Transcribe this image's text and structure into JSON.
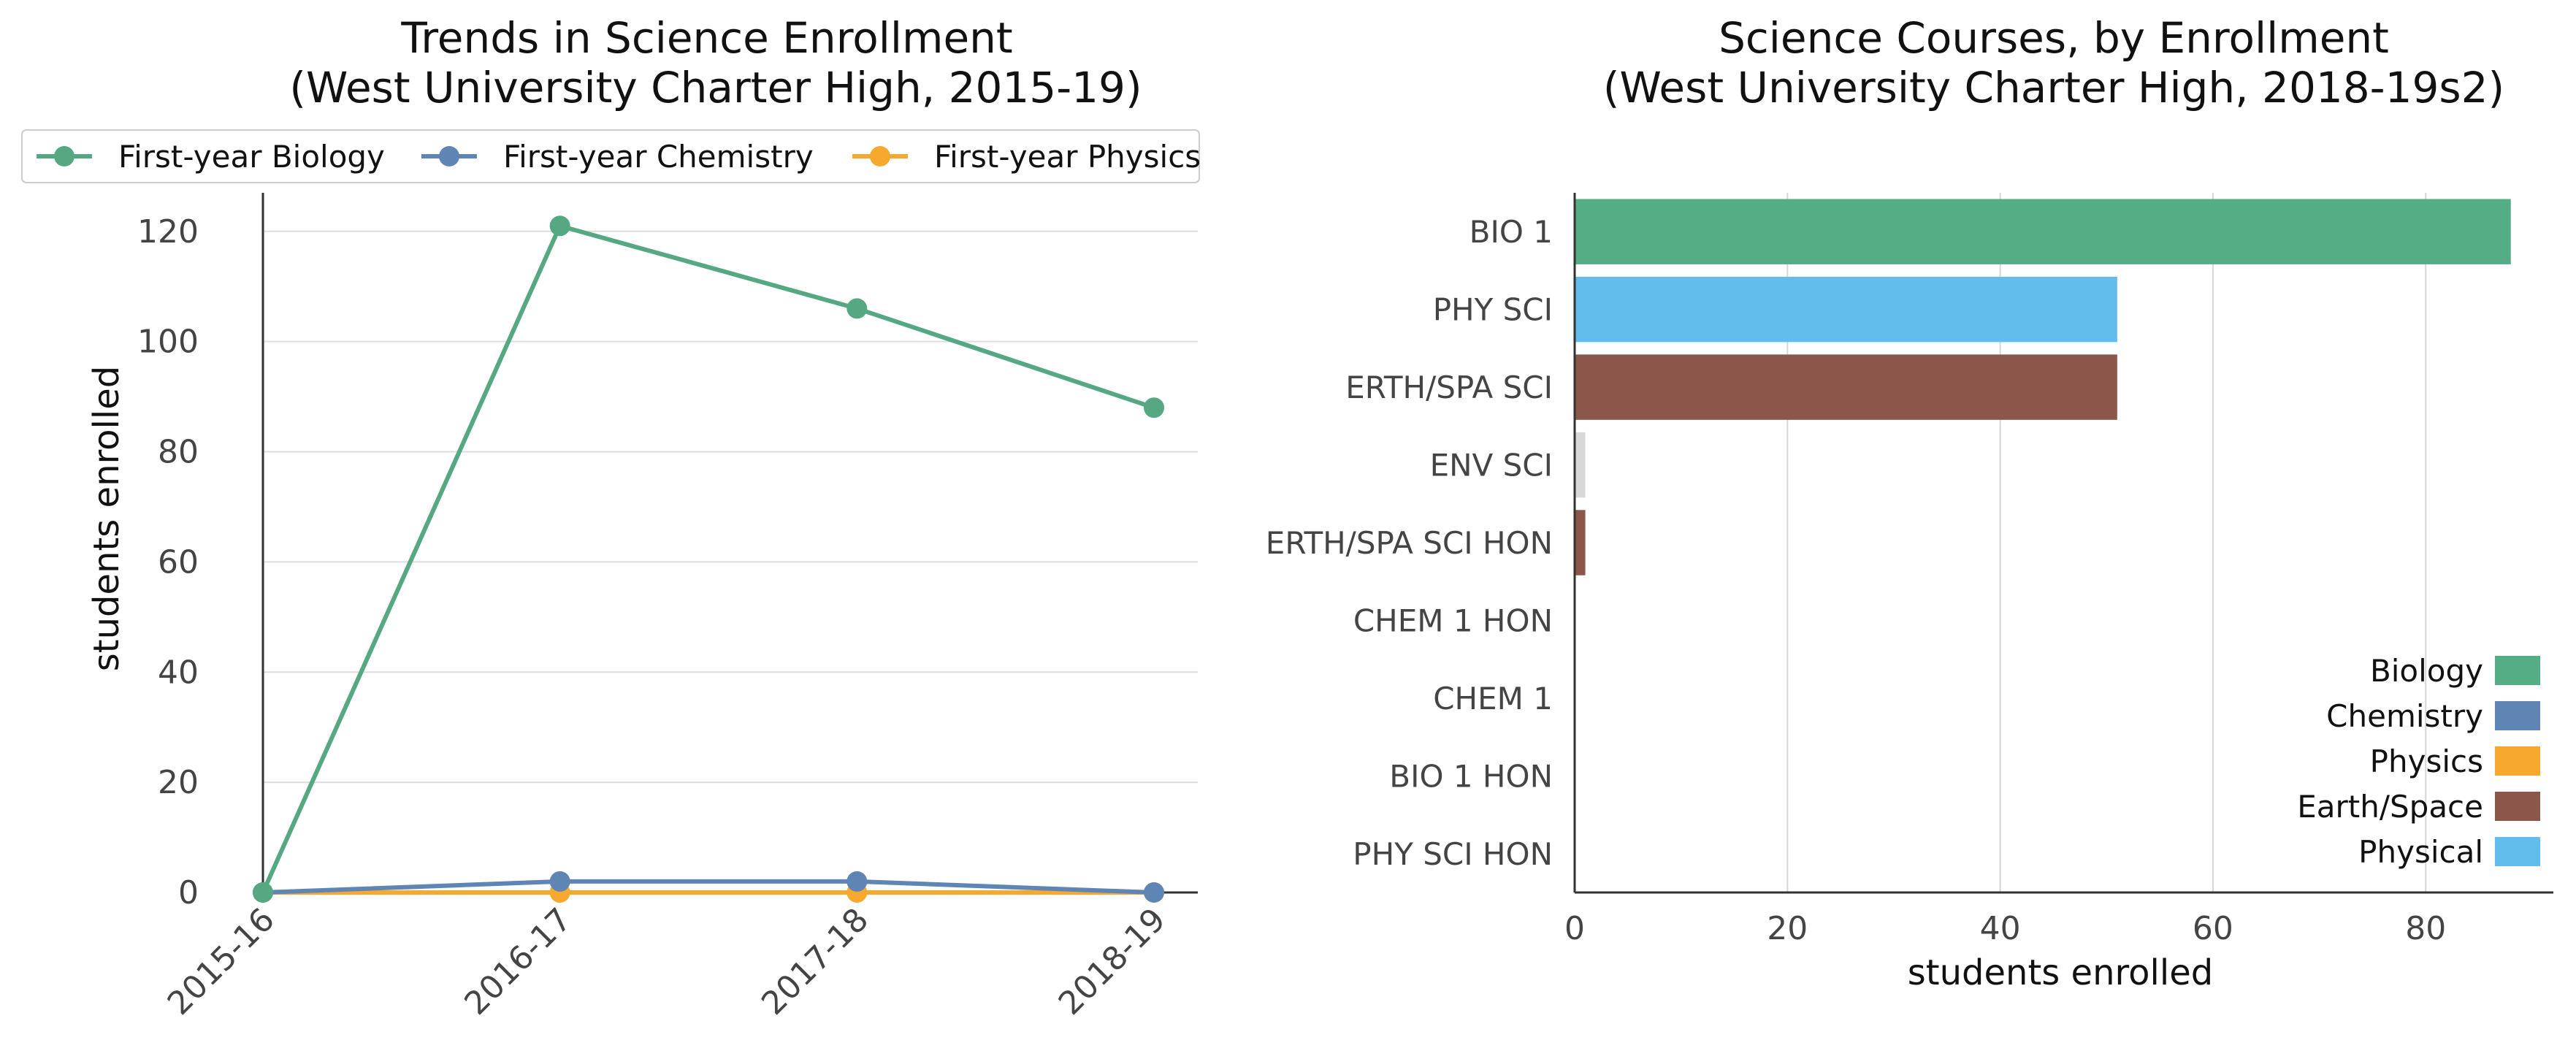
{
  "chart_data": [
    {
      "type": "line",
      "title": "Trends in Science Enrollment",
      "subtitle": "(West University Charter High, 2015-19)",
      "xlabel": "",
      "ylabel": "students enrolled",
      "categories": [
        "2015-16",
        "2016-17",
        "2017-18",
        "2018-19"
      ],
      "yticks": [
        "0",
        "20",
        "40",
        "60",
        "80",
        "100",
        "120"
      ],
      "ylim": [
        0,
        127
      ],
      "grid": "horizontal",
      "legend_position": "top",
      "series": [
        {
          "name": "First-year Biology",
          "color": "#55a882",
          "values": [
            0,
            121,
            106,
            88
          ]
        },
        {
          "name": "First-year Chemistry",
          "color": "#5f85b5",
          "values": [
            0,
            2,
            2,
            0
          ]
        },
        {
          "name": "First-year Physics",
          "color": "#f6a82f",
          "values": [
            0,
            0,
            0,
            0
          ]
        }
      ]
    },
    {
      "type": "bar",
      "orientation": "horizontal",
      "title": "Science Courses, by Enrollment",
      "subtitle": "(West University Charter High, 2018-19s2)",
      "xlabel": "students enrolled",
      "ylabel": "",
      "xticks": [
        "0",
        "20",
        "40",
        "60",
        "80"
      ],
      "xlim": [
        0,
        92
      ],
      "grid": "vertical",
      "legend_position": "bottom-right",
      "categories": [
        "BIO 1",
        "PHY SCI",
        "ERTH/SPA SCI",
        "ENV SCI",
        "ERTH/SPA SCI HON",
        "CHEM 1 HON",
        "CHEM 1",
        "BIO 1 HON",
        "PHY SCI HON"
      ],
      "values": [
        88,
        51,
        51,
        1,
        1,
        0,
        0,
        0,
        0
      ],
      "bar_colors": [
        "#55ad86",
        "#62bdec",
        "#8a574a",
        "#d8d8d8",
        "#8a574a",
        "#5f85b5",
        "#5f85b5",
        "#55ad86",
        "#62bdec"
      ],
      "legend": [
        {
          "name": "Biology",
          "color": "#55ad86"
        },
        {
          "name": "Chemistry",
          "color": "#5f85b5"
        },
        {
          "name": "Physics",
          "color": "#f6a82f"
        },
        {
          "name": "Earth/Space",
          "color": "#8a574a"
        },
        {
          "name": "Physical",
          "color": "#62bdec"
        }
      ]
    }
  ]
}
